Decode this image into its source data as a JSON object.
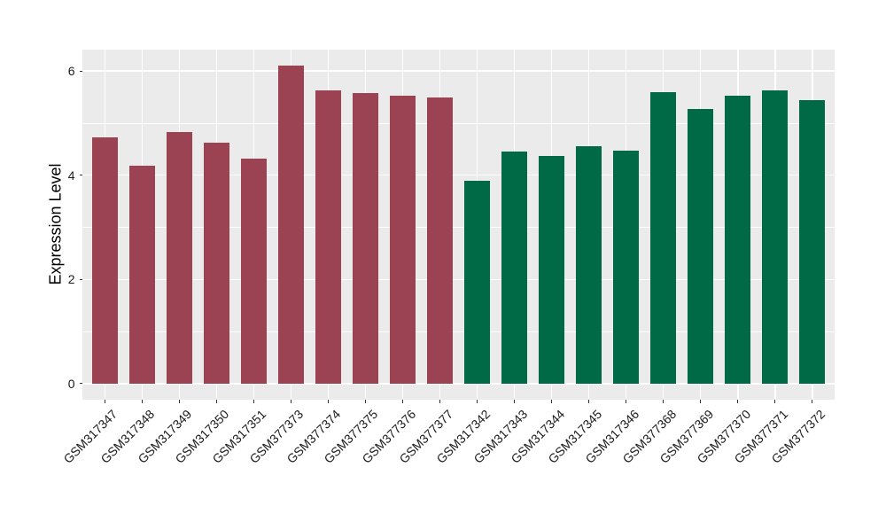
{
  "colors": {
    "page_bg": "#FFFFFF",
    "panel_bg": "#EBEBEB",
    "gridline": "#FFFFFF",
    "axis_text": "#1A1A1A",
    "axis_title_text": "#000000",
    "tick_mark": "#333333",
    "bar_red": "#9B4352",
    "bar_green": "#006946"
  },
  "chart_data": {
    "type": "bar",
    "title": "",
    "xlabel": "",
    "ylabel": "Expression Level",
    "legend_position": "none",
    "grid": "white major and minor gridlines on gray panel",
    "ylim": [
      -0.31,
      6.41
    ],
    "yticks": [
      0,
      2,
      4,
      6
    ],
    "yticks_minor": [
      1,
      3,
      5
    ],
    "categories": [
      "GSM317347",
      "GSM317348",
      "GSM317349",
      "GSM317350",
      "GSM317351",
      "GSM377373",
      "GSM377374",
      "GSM377375",
      "GSM377376",
      "GSM377377",
      "GSM317342",
      "GSM317343",
      "GSM317344",
      "GSM317345",
      "GSM317346",
      "GSM377368",
      "GSM377369",
      "GSM377370",
      "GSM377371",
      "GSM377372"
    ],
    "bars": [
      {
        "label": "GSM317347",
        "value": 4.73,
        "color": "#9B4352"
      },
      {
        "label": "GSM317348",
        "value": 4.18,
        "color": "#9B4352"
      },
      {
        "label": "GSM317349",
        "value": 4.83,
        "color": "#9B4352"
      },
      {
        "label": "GSM317350",
        "value": 4.63,
        "color": "#9B4352"
      },
      {
        "label": "GSM317351",
        "value": 4.31,
        "color": "#9B4352"
      },
      {
        "label": "GSM377373",
        "value": 6.1,
        "color": "#9B4352"
      },
      {
        "label": "GSM377374",
        "value": 5.62,
        "color": "#9B4352"
      },
      {
        "label": "GSM377375",
        "value": 5.57,
        "color": "#9B4352"
      },
      {
        "label": "GSM377376",
        "value": 5.53,
        "color": "#9B4352"
      },
      {
        "label": "GSM377377",
        "value": 5.49,
        "color": "#9B4352"
      },
      {
        "label": "GSM317342",
        "value": 3.9,
        "color": "#006946"
      },
      {
        "label": "GSM317343",
        "value": 4.46,
        "color": "#006946"
      },
      {
        "label": "GSM317344",
        "value": 4.37,
        "color": "#006946"
      },
      {
        "label": "GSM317345",
        "value": 4.55,
        "color": "#006946"
      },
      {
        "label": "GSM317346",
        "value": 4.47,
        "color": "#006946"
      },
      {
        "label": "GSM377368",
        "value": 5.6,
        "color": "#006946"
      },
      {
        "label": "GSM377369",
        "value": 5.27,
        "color": "#006946"
      },
      {
        "label": "GSM377370",
        "value": 5.52,
        "color": "#006946"
      },
      {
        "label": "GSM377371",
        "value": 5.62,
        "color": "#006946"
      },
      {
        "label": "GSM377372",
        "value": 5.44,
        "color": "#006946"
      }
    ]
  }
}
